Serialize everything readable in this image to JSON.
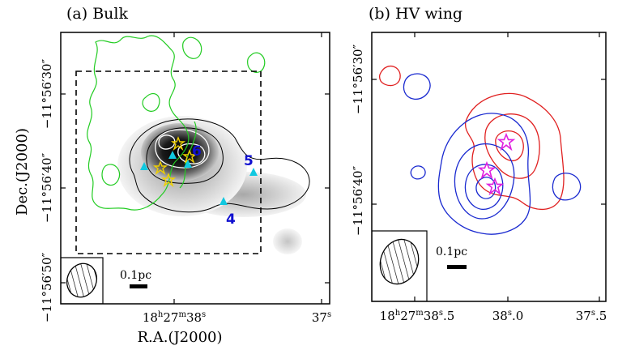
{
  "chart_data": [
    {
      "type": "contour",
      "panel_label": "(a) Bulk",
      "xlabel": "R.A.(J2000)",
      "ylabel": "Dec.(J2000)",
      "x_tick_labels": [
        {
          "major": "18",
          "sup1": "h",
          "mid": "27",
          "sup2": "m",
          "minor": "38",
          "sup3": "s"
        },
        {
          "major": "37",
          "sup1": "s"
        }
      ],
      "y_tick_labels": [
        "−11°56′30″",
        "−11°56′40″",
        "−11°56′50″"
      ],
      "scale_bar_label": "0.1pc",
      "source_labels": [
        "4",
        "5",
        "6"
      ],
      "colors": {
        "outflow_contour": "#22cc22",
        "source_triangle": "#10c8e0",
        "star_marker": "#f0d000",
        "source_label": "#1010d0"
      }
    },
    {
      "type": "contour",
      "panel_label": "(b) HV wing",
      "x_tick_labels": [
        {
          "major": "18",
          "sup1": "h",
          "mid": "27",
          "sup2": "m",
          "minor": "38",
          "sup3": "s",
          "frac": ".5"
        },
        {
          "major": "38",
          "sup1": "s",
          "frac": ".0"
        },
        {
          "major": "37",
          "sup1": "s",
          "frac": ".5"
        }
      ],
      "y_tick_labels": [
        "−11°56′30″",
        "−11°56′40″"
      ],
      "scale_bar_label": "0.1pc",
      "colors": {
        "redshifted": "#e02020",
        "blueshifted": "#1a2ad0",
        "star_marker": "#e020e0"
      }
    }
  ]
}
